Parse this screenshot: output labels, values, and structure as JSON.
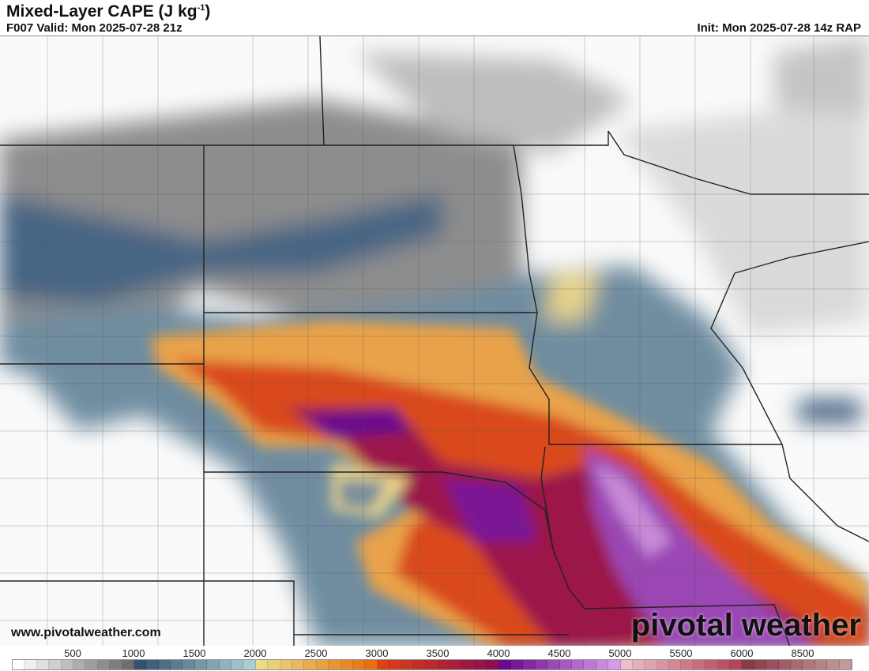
{
  "header": {
    "title": "Mixed-Layer CAPE (J kg",
    "title_sup": "-1",
    "title_close": ")",
    "valid": "F007 Valid: Mon 2025-07-28 21z",
    "init": "Init: Mon 2025-07-28 14z RAP"
  },
  "footer": {
    "website": "www.pivotalweather.com",
    "brand": "pivotal weather"
  },
  "colorbar": {
    "unit": "J kg-1",
    "tick_labels": [
      "500",
      "1000",
      "1500",
      "2000",
      "2500",
      "3000",
      "3500",
      "4000",
      "4500",
      "5000",
      "5500",
      "6000",
      "8500"
    ],
    "color_stops": [
      {
        "from": 0,
        "to": 1000,
        "start": "#ffffff",
        "end": "#6e6e6e"
      },
      {
        "from": 1000,
        "to": 2000,
        "start": "#35526e",
        "end": "#a9cdd3"
      },
      {
        "from": 2000,
        "to": 3000,
        "start": "#ecdc8a",
        "end": "#e5700d"
      },
      {
        "from": 3000,
        "to": 4000,
        "start": "#dc4016",
        "end": "#8e0e52"
      },
      {
        "from": 4000,
        "to": 5000,
        "start": "#6a0a8e",
        "end": "#d69ae6"
      },
      {
        "from": 5000,
        "to": 6000,
        "start": "#eabfc6",
        "end": "#b6445a"
      },
      {
        "from": 6000,
        "to": 10500,
        "start": "#8a3a4a",
        "end": "#c39a9c"
      }
    ]
  }
}
